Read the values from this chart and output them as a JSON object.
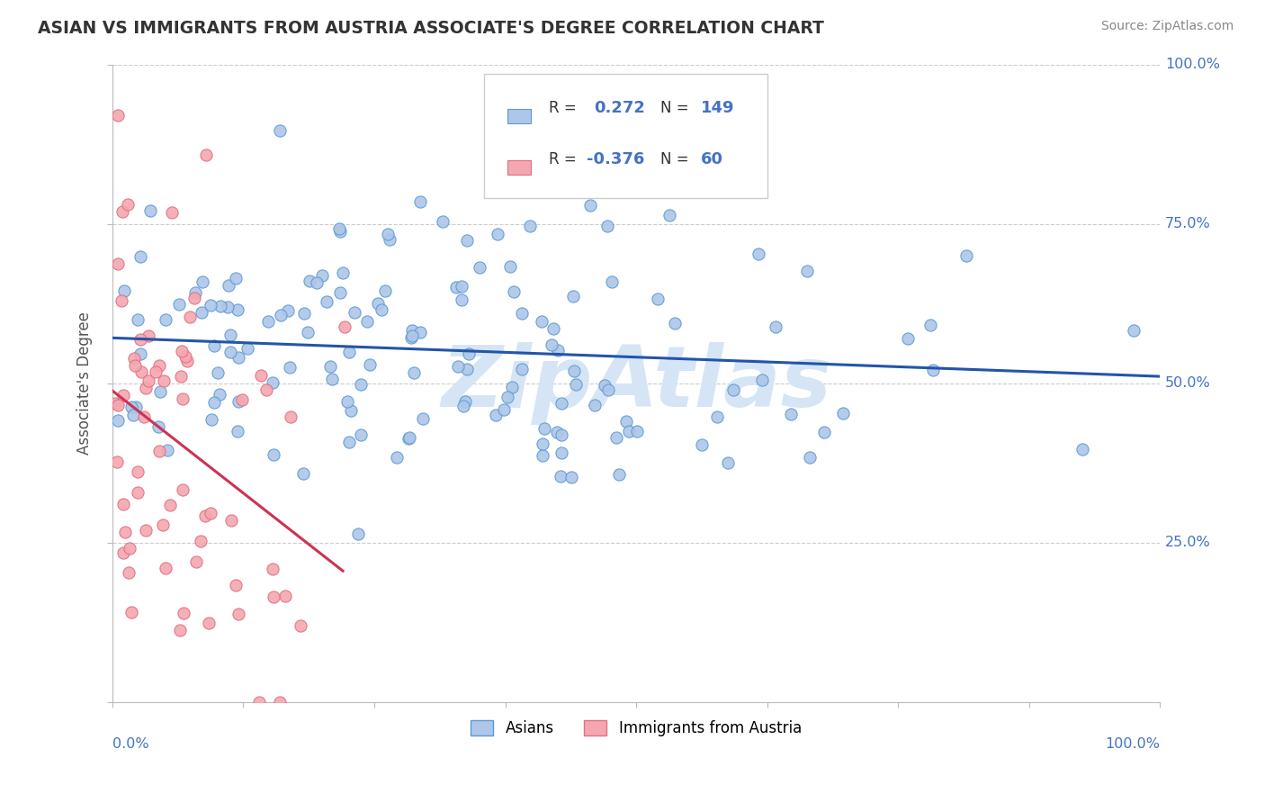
{
  "title": "ASIAN VS IMMIGRANTS FROM AUSTRIA ASSOCIATE'S DEGREE CORRELATION CHART",
  "source": "Source: ZipAtlas.com",
  "ylabel": "Associate's Degree",
  "r1": 0.272,
  "n1": 149,
  "r2": -0.376,
  "n2": 60,
  "asian_color": "#aec6e8",
  "austria_color": "#f4a7b0",
  "asian_edge_color": "#5b9bd5",
  "austria_edge_color": "#e07080",
  "trendline1_color": "#2255aa",
  "trendline2_color": "#cc3355",
  "watermark": "ZipAtlas",
  "watermark_color": "#d5e5f5",
  "background_color": "#ffffff",
  "grid_color": "#cccccc",
  "legend_r_color": "#4472c4",
  "legend_n_color": "#4472c4",
  "axis_label_color": "#4472c4",
  "ylabel_color": "#555555",
  "title_color": "#333333",
  "source_color": "#888888"
}
